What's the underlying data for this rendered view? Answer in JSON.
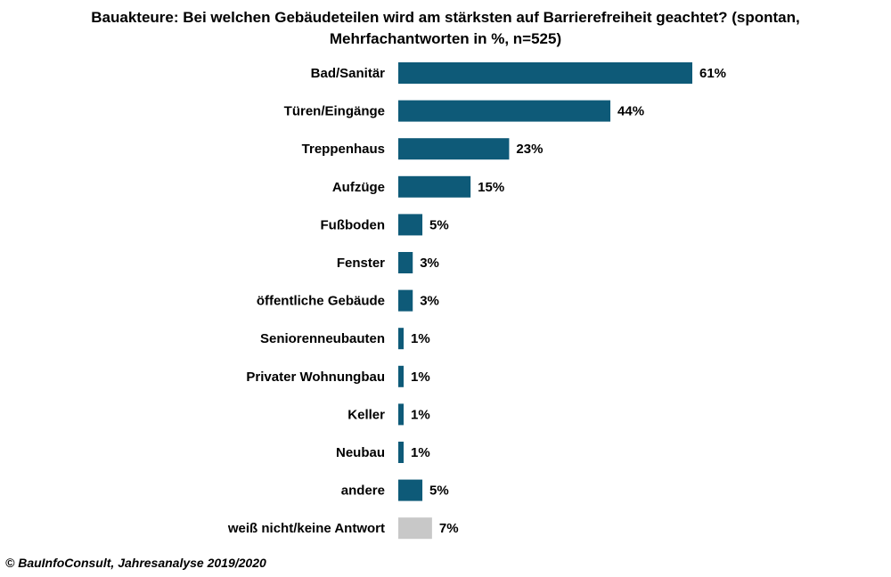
{
  "chart_data": {
    "type": "bar",
    "orientation": "horizontal",
    "title_line1": "Bauakteure: Bei welchen Gebäudeteilen wird am stärksten auf Barrierefreiheit geachtet? (spontan,",
    "title_line2": "Mehrfachantworten in %, n=525)",
    "categories": [
      "Bad/Sanitär",
      "Türen/Eingänge",
      "Treppenhaus",
      "Aufzüge",
      "Fußboden",
      "Fenster",
      "öffentliche Gebäude",
      "Seniorenneubauten",
      "Privater Wohnungbau",
      "Keller",
      "Neubau",
      "andere",
      "weiß nicht/keine Antwort"
    ],
    "values": [
      61,
      44,
      23,
      15,
      5,
      3,
      3,
      1,
      1,
      1,
      1,
      5,
      7
    ],
    "value_labels": [
      "61%",
      "44%",
      "23%",
      "15%",
      "5%",
      "3%",
      "3%",
      "1%",
      "1%",
      "1%",
      "1%",
      "5%",
      "7%"
    ],
    "bar_colors": [
      "#0e5a78",
      "#0e5a78",
      "#0e5a78",
      "#0e5a78",
      "#0e5a78",
      "#0e5a78",
      "#0e5a78",
      "#0e5a78",
      "#0e5a78",
      "#0e5a78",
      "#0e5a78",
      "#0e5a78",
      "#c8c8c8"
    ],
    "xlim": [
      0,
      61
    ],
    "grid": false,
    "legend": false
  },
  "source": "© BauInfoConsult, Jahresanalyse 2019/2020"
}
